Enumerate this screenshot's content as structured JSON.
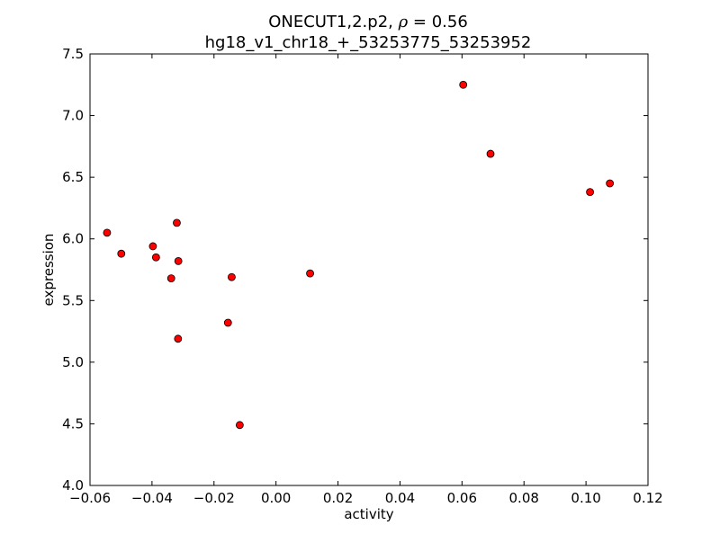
{
  "chart_data": {
    "type": "scatter",
    "title_line1_prefix": "ONECUT1,2.p2, ",
    "title_rho_symbol": "ρ",
    "title_rho_value": " = 0.56",
    "title_line2": "hg18_v1_chr18_+_53253775_53253952",
    "xlabel": "activity",
    "ylabel": "expression",
    "xlim": [
      -0.06,
      0.12
    ],
    "ylim": [
      4.0,
      7.5
    ],
    "xticks": [
      -0.06,
      -0.04,
      -0.02,
      0.0,
      0.02,
      0.04,
      0.06,
      0.08,
      0.1,
      0.12
    ],
    "xtick_labels": [
      "−0.06",
      "−0.04",
      "−0.02",
      "0.00",
      "0.02",
      "0.04",
      "0.06",
      "0.08",
      "0.10",
      "0.12"
    ],
    "yticks": [
      4.0,
      4.5,
      5.0,
      5.5,
      6.0,
      6.5,
      7.0,
      7.5
    ],
    "ytick_labels": [
      "4.0",
      "4.5",
      "5.0",
      "5.5",
      "6.0",
      "6.5",
      "7.0",
      "7.5"
    ],
    "grid": false,
    "marker_color": "#ff0000",
    "marker_edge_color": "#000000",
    "points": [
      {
        "x": -0.0545,
        "y": 6.05
      },
      {
        "x": -0.0499,
        "y": 5.88
      },
      {
        "x": -0.0397,
        "y": 5.94
      },
      {
        "x": -0.0387,
        "y": 5.85
      },
      {
        "x": -0.0338,
        "y": 5.68
      },
      {
        "x": -0.032,
        "y": 6.13
      },
      {
        "x": -0.0315,
        "y": 5.82
      },
      {
        "x": -0.0316,
        "y": 5.19
      },
      {
        "x": -0.0155,
        "y": 5.32
      },
      {
        "x": -0.0143,
        "y": 5.69
      },
      {
        "x": -0.0117,
        "y": 4.49
      },
      {
        "x": 0.011,
        "y": 5.72
      },
      {
        "x": 0.0604,
        "y": 7.25
      },
      {
        "x": 0.0692,
        "y": 6.69
      },
      {
        "x": 0.1013,
        "y": 6.38
      },
      {
        "x": 0.1077,
        "y": 6.45
      }
    ]
  }
}
